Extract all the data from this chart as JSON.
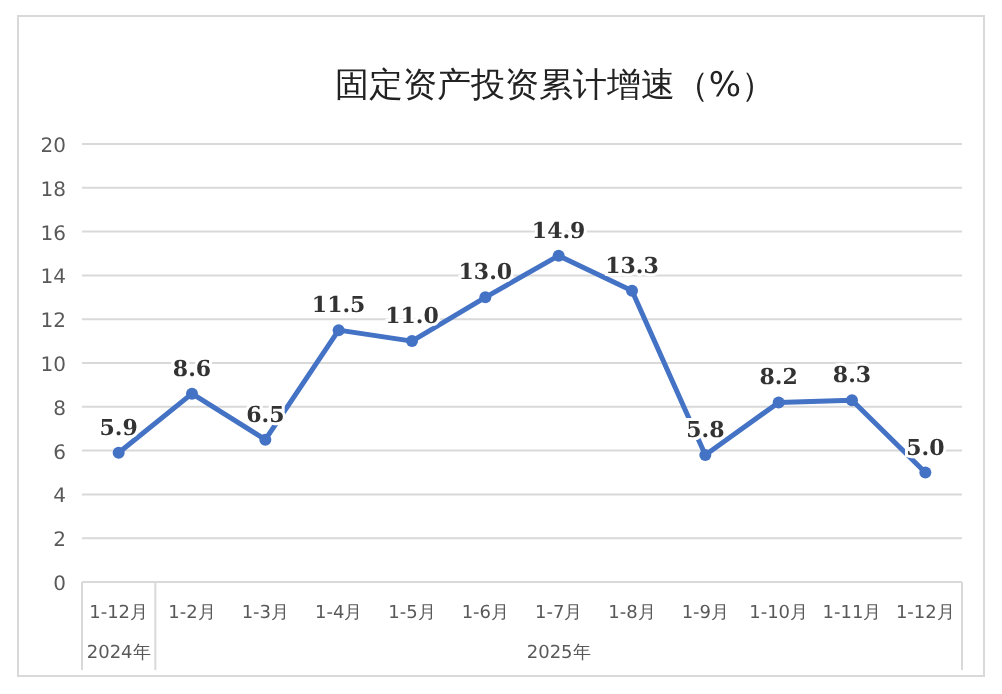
{
  "chart_data": {
    "type": "line",
    "title": "固定资产投资累计增速（%）",
    "categories": [
      "1-12月",
      "1-2月",
      "1-3月",
      "1-4月",
      "1-5月",
      "1-6月",
      "1-7月",
      "1-8月",
      "1-9月",
      "1-10月",
      "1-11月",
      "1-12月"
    ],
    "series": [
      {
        "color": "#4472c4",
        "values": [
          5.9,
          8.6,
          6.5,
          11.5,
          11.0,
          13.0,
          14.9,
          13.3,
          5.8,
          8.2,
          8.3,
          5.0
        ],
        "value_labels": [
          "5.9",
          "8.6",
          "6.5",
          "11.5",
          "11.0",
          "13.0",
          "14.9",
          "13.3",
          "5.8",
          "8.2",
          "8.3",
          "5.0"
        ]
      }
    ],
    "ylim": [
      0,
      20
    ],
    "yticks": [
      0,
      2,
      4,
      6,
      8,
      10,
      12,
      14,
      16,
      18,
      20
    ],
    "grid": "y",
    "marker": "circle",
    "line_style": "solid",
    "annotations": [
      "2024年",
      "2025年"
    ]
  }
}
